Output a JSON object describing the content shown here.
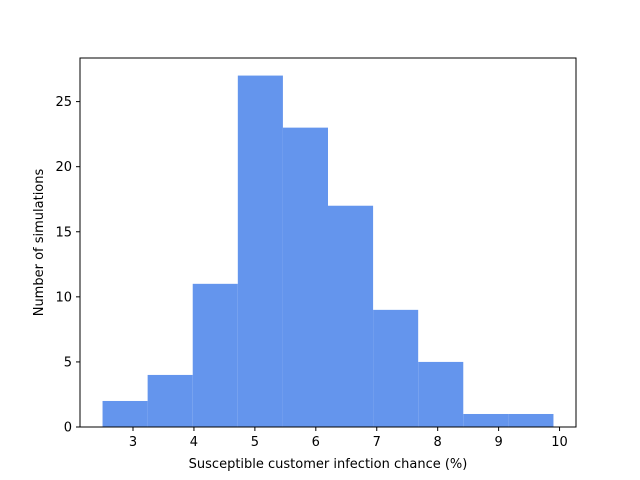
{
  "chart_data": {
    "type": "bar",
    "subtype": "histogram",
    "title": "",
    "xlabel": "Susceptible customer infection chance (%)",
    "ylabel": "Number of simulations",
    "bin_edges": [
      2.5,
      3.24,
      3.98,
      4.72,
      5.46,
      6.2,
      6.94,
      7.68,
      8.42,
      9.16,
      9.9
    ],
    "values": [
      2,
      4,
      11,
      27,
      23,
      17,
      9,
      5,
      1,
      1
    ],
    "xlim": [
      2.13,
      10.27
    ],
    "ylim": [
      0,
      28.35
    ],
    "xticks": [
      3,
      4,
      5,
      6,
      7,
      8,
      9,
      10
    ],
    "yticks": [
      0,
      5,
      10,
      15,
      20,
      25
    ],
    "grid": false,
    "legend": "none",
    "bar_color": "#6495ed"
  }
}
